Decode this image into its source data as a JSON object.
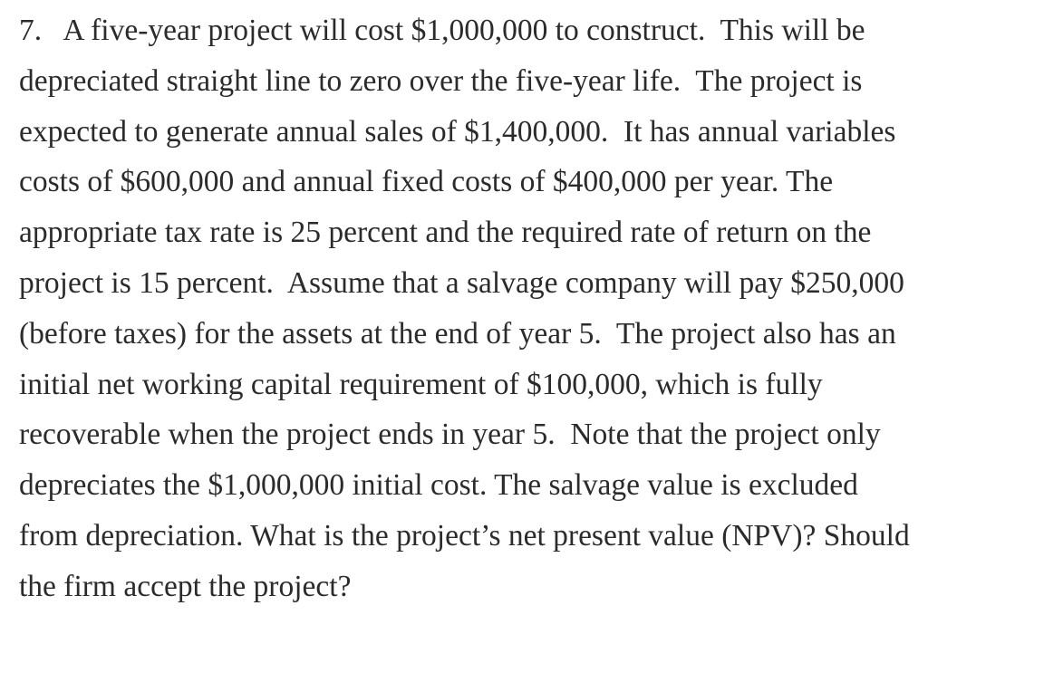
{
  "question": {
    "lines": [
      "7.   A five-year project will cost $1,000,000 to construct.  This will be",
      "depreciated straight line to zero over the five-year life.  The project is",
      "expected to generate annual sales of $1,400,000.  It has annual variables",
      "costs of $600,000 and annual fixed costs of $400,000 per year. The",
      "appropriate tax rate is 25 percent and the required rate of return on the",
      "project is 15 percent.  Assume that a salvage company will pay $250,000",
      "(before taxes) for the assets at the end of year 5.  The project also has an",
      "initial net working capital requirement of $100,000, which is fully",
      "recoverable when the project ends in year 5.  Note that the project only",
      "depreciates the $1,000,000 initial cost. The salvage value is excluded",
      "from depreciation. What is the project’s net present value (NPV)? Should",
      "the firm accept the project?"
    ]
  }
}
